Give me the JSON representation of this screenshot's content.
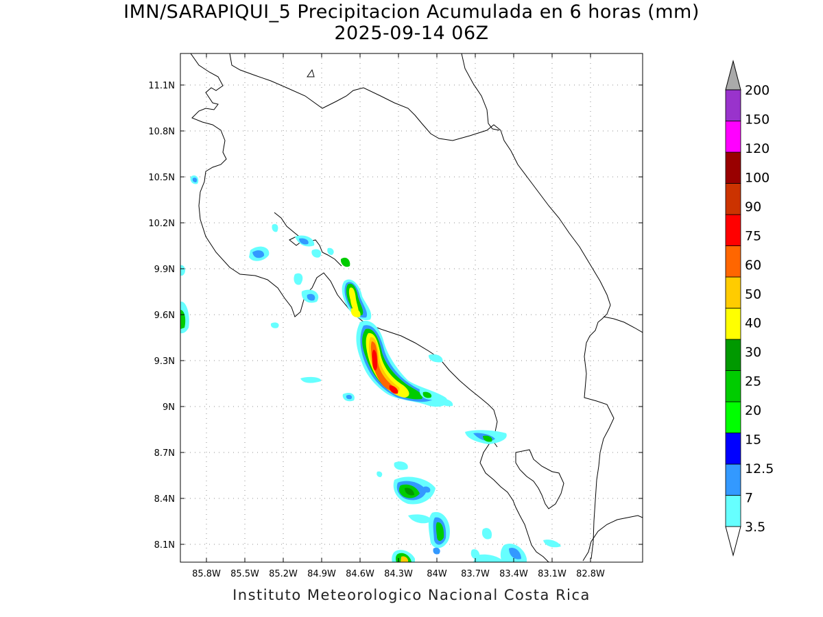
{
  "title": {
    "line1": "IMN/SARAPIQUI_5 Precipitacion Acumulada en 6 horas (mm)",
    "line2": "2025-09-14 06Z"
  },
  "footer": "Instituto Meteorologico Nacional Costa Rica",
  "map": {
    "lon_range": [
      -86.0,
      -83.0
    ],
    "lat_range": [
      8.0,
      11.3
    ],
    "lon_ticks": [
      "85.8W",
      "85.5W",
      "85.2W",
      "84.9W",
      "84.6W",
      "84.3W",
      "84W",
      "83.7W",
      "83.4W",
      "83.1W",
      "82.8W"
    ],
    "lat_ticks": [
      "11.1N",
      "10.8N",
      "10.5N",
      "10.2N",
      "9.9N",
      "9.6N",
      "9.3N",
      "9N",
      "8.7N",
      "8.4N",
      "8.1N"
    ],
    "grid": true
  },
  "colorbar": {
    "levels": [
      "3.5",
      "7",
      "12.5",
      "15",
      "20",
      "25",
      "30",
      "40",
      "50",
      "60",
      "75",
      "90",
      "100",
      "120",
      "150",
      "200"
    ],
    "colors": [
      "#66ffff",
      "#3399ff",
      "#0000ff",
      "#00ff00",
      "#00cc00",
      "#009900",
      "#ffff00",
      "#ffcc00",
      "#ff6600",
      "#ff0000",
      "#cc3300",
      "#990000",
      "#ff00ff",
      "#9933cc",
      "#f8f8f8",
      "#aaaaaa"
    ]
  }
}
